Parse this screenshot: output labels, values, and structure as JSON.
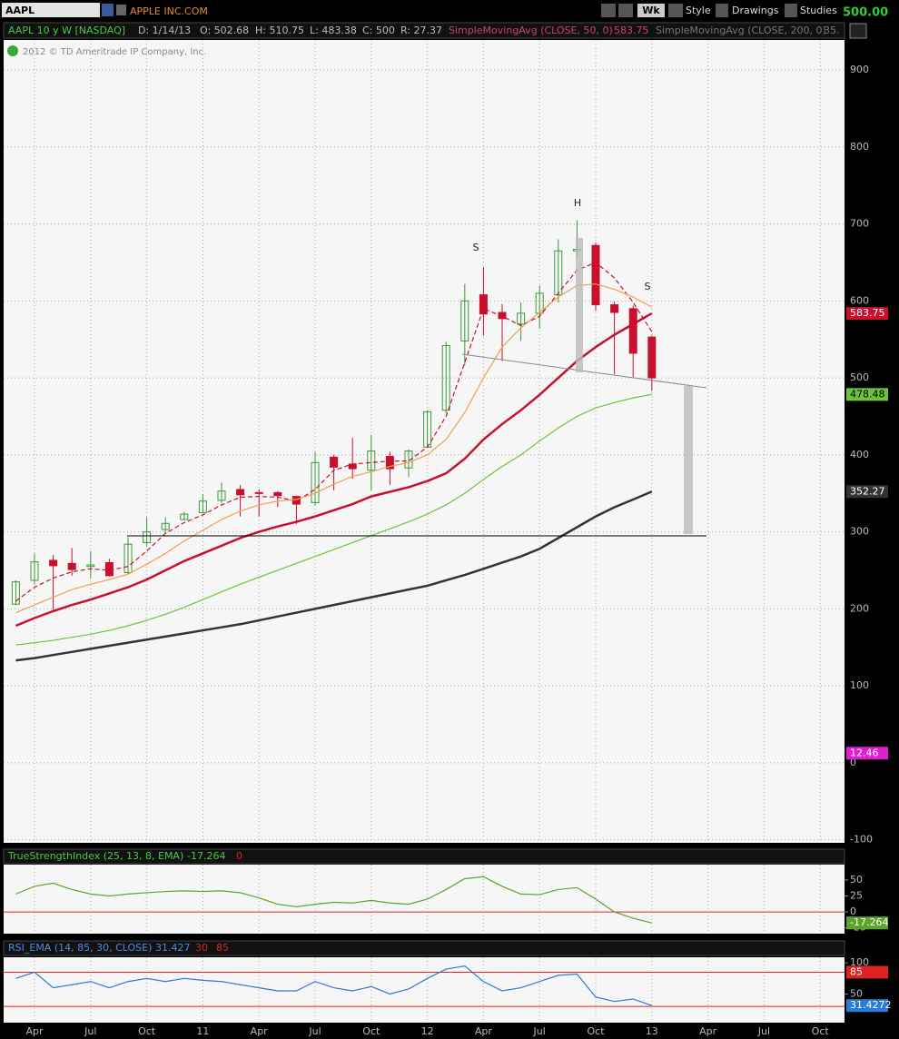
{
  "toolbar": {
    "symbol": "AAPL",
    "company": "APPLE INC.COM",
    "aggregation": "Wk",
    "buttons": [
      "Style",
      "Drawings",
      "Studies"
    ],
    "last": "500.00"
  },
  "header": {
    "title": "AAPL 10 y W [NASDAQ]",
    "fields": [
      "D: 1/14/13",
      "O: 502.68",
      "H: 510.75",
      "L: 483.38",
      "C: 500",
      "R: 27.37"
    ],
    "study2_value": "35."
  },
  "copyright": "2012 © TD Ameritrade IP Company, Inc.",
  "chart_data": [
    {
      "type": "candlestick",
      "ylim": [
        -104,
        939
      ],
      "yticks": [
        900,
        800,
        700,
        600,
        500,
        400,
        300,
        200,
        100,
        0,
        -100
      ],
      "grid": true,
      "up_color": "#3a9a3a",
      "down_color": "#c8102e",
      "annotations": [
        "S",
        "H",
        "S"
      ],
      "categories": [
        null,
        "Apr",
        null,
        null,
        "Jul",
        null,
        null,
        "Oct",
        null,
        null,
        "11",
        null,
        null,
        "Apr",
        null,
        null,
        "Jul",
        null,
        null,
        "Oct",
        null,
        null,
        "12",
        null,
        null,
        "Apr",
        null,
        null,
        "Jul",
        null,
        null,
        "Oct",
        null,
        null,
        "13",
        null,
        null,
        "Apr",
        null,
        null,
        "Jul",
        null,
        null,
        "Oct"
      ],
      "open": [
        206,
        237,
        263,
        259,
        255,
        260,
        247,
        286,
        303,
        316,
        325,
        341,
        355,
        351,
        351,
        346,
        338,
        397,
        388,
        380,
        398,
        383,
        410,
        458,
        548,
        608,
        585,
        570,
        584,
        608,
        665,
        672,
        595,
        590,
        553,
        null,
        null,
        null,
        null,
        null,
        null,
        null,
        null,
        null
      ],
      "high": [
        237,
        272,
        270,
        279,
        275,
        265,
        293,
        319,
        319,
        326,
        349,
        364,
        361,
        355,
        353,
        347,
        404,
        400,
        422,
        426,
        404,
        407,
        458,
        547,
        622,
        644,
        596,
        598,
        620,
        680,
        705,
        676,
        599,
        594,
        555,
        null,
        null,
        null,
        null,
        null,
        null,
        null,
        null,
        null
      ],
      "low": [
        205,
        232,
        199,
        243,
        240,
        242,
        245,
        281,
        298,
        315,
        324,
        337,
        320,
        320,
        332,
        310,
        334,
        354,
        369,
        354,
        361,
        371,
        409,
        454,
        516,
        555,
        522,
        548,
        564,
        598,
        656,
        587,
        505,
        501,
        483,
        null,
        null,
        null,
        null,
        null,
        null,
        null,
        null,
        null
      ],
      "close": [
        235,
        261,
        256,
        251,
        257,
        243,
        284,
        300,
        311,
        323,
        340,
        353,
        348,
        350,
        347,
        336,
        390,
        384,
        382,
        405,
        382,
        405,
        456,
        542,
        600,
        583,
        577,
        584,
        610,
        665,
        667,
        595,
        585,
        532,
        500,
        null,
        null,
        null,
        null,
        null,
        null,
        null,
        null,
        null
      ],
      "series": [
        {
          "color": "#c8102e",
          "style": "dashed",
          "values": [
            210,
            228,
            240,
            248,
            252,
            250,
            255,
            275,
            298,
            312,
            322,
            335,
            345,
            346,
            345,
            340,
            355,
            380,
            388,
            390,
            392,
            392,
            410,
            450,
            520,
            590,
            580,
            568,
            580,
            610,
            640,
            650,
            630,
            598,
            560,
            null,
            null,
            null,
            null,
            null,
            null,
            null,
            null,
            null
          ]
        },
        {
          "color": "#f0a050",
          "values": [
            195,
            205,
            215,
            225,
            232,
            238,
            245,
            258,
            272,
            288,
            302,
            316,
            327,
            335,
            340,
            342,
            350,
            362,
            372,
            378,
            385,
            390,
            400,
            420,
            455,
            500,
            540,
            565,
            585,
            605,
            620,
            622,
            615,
            605,
            592,
            null,
            null,
            null,
            null,
            null,
            null,
            null,
            null,
            null
          ]
        },
        {
          "name": "SimpleMovingAvg (CLOSE, 50, 0)",
          "color": "#c8102e",
          "values": [
            178,
            188,
            197,
            205,
            212,
            220,
            228,
            238,
            250,
            262,
            272,
            282,
            292,
            300,
            307,
            313,
            320,
            328,
            336,
            346,
            352,
            358,
            366,
            376,
            395,
            420,
            440,
            458,
            478,
            500,
            522,
            540,
            556,
            570,
            583.75,
            null,
            null,
            null,
            null,
            null,
            null,
            null,
            null,
            null
          ]
        },
        {
          "color": "#6cc43c",
          "values": [
            153,
            156,
            159,
            163,
            167,
            172,
            178,
            185,
            193,
            202,
            212,
            222,
            232,
            241,
            250,
            259,
            268,
            277,
            286,
            295,
            304,
            313,
            323,
            335,
            350,
            368,
            385,
            400,
            418,
            435,
            450,
            461,
            468,
            474,
            478.48,
            null,
            null,
            null,
            null,
            null,
            null,
            null,
            null,
            null
          ]
        },
        {
          "name": "SimpleMovingAvg (CLOSE, 200, 0)",
          "color": "#333333",
          "values": [
            133,
            136,
            140,
            144,
            148,
            152,
            156,
            160,
            164,
            168,
            172,
            176,
            180,
            185,
            190,
            195,
            200,
            205,
            210,
            215,
            220,
            225,
            230,
            237,
            244,
            252,
            260,
            268,
            278,
            292,
            306,
            320,
            332,
            342,
            352.27,
            null,
            null,
            null,
            null,
            null,
            null,
            null,
            null,
            null
          ]
        }
      ],
      "price_labels": [
        {
          "value": 12.46,
          "color": "#e020d0"
        }
      ]
    },
    {
      "type": "line",
      "title": "TrueStrengthIndex (25, 13, 8, EMA)",
      "ylim": [
        -34,
        74
      ],
      "yticks": [
        50,
        25,
        0,
        -25
      ],
      "levels": [
        0
      ],
      "series": [
        {
          "color": "#5aa52a",
          "values": [
            28,
            40,
            45,
            35,
            28,
            25,
            28,
            30,
            32,
            33,
            32,
            33,
            30,
            22,
            12,
            8,
            12,
            15,
            14,
            18,
            14,
            12,
            20,
            35,
            52,
            55,
            40,
            28,
            27,
            35,
            38,
            20,
            0,
            -10,
            -17.264,
            null,
            null,
            null,
            null,
            null,
            null,
            null,
            null,
            null
          ]
        }
      ]
    },
    {
      "type": "line",
      "title": "RSI_EMA (14, 85, 30, CLOSE)",
      "value_text": "31.427",
      "ylim": [
        4,
        109
      ],
      "yticks": [
        100,
        50
      ],
      "levels": [
        85,
        30
      ],
      "series": [
        {
          "color": "#2a7ad8",
          "values": [
            75,
            85,
            60,
            65,
            70,
            60,
            70,
            75,
            70,
            75,
            72,
            70,
            65,
            60,
            55,
            55,
            70,
            60,
            55,
            62,
            50,
            58,
            75,
            90,
            95,
            70,
            55,
            60,
            70,
            80,
            82,
            45,
            38,
            42,
            31.4272,
            null,
            null,
            null,
            null,
            null,
            null,
            null,
            null,
            null
          ]
        }
      ]
    }
  ]
}
